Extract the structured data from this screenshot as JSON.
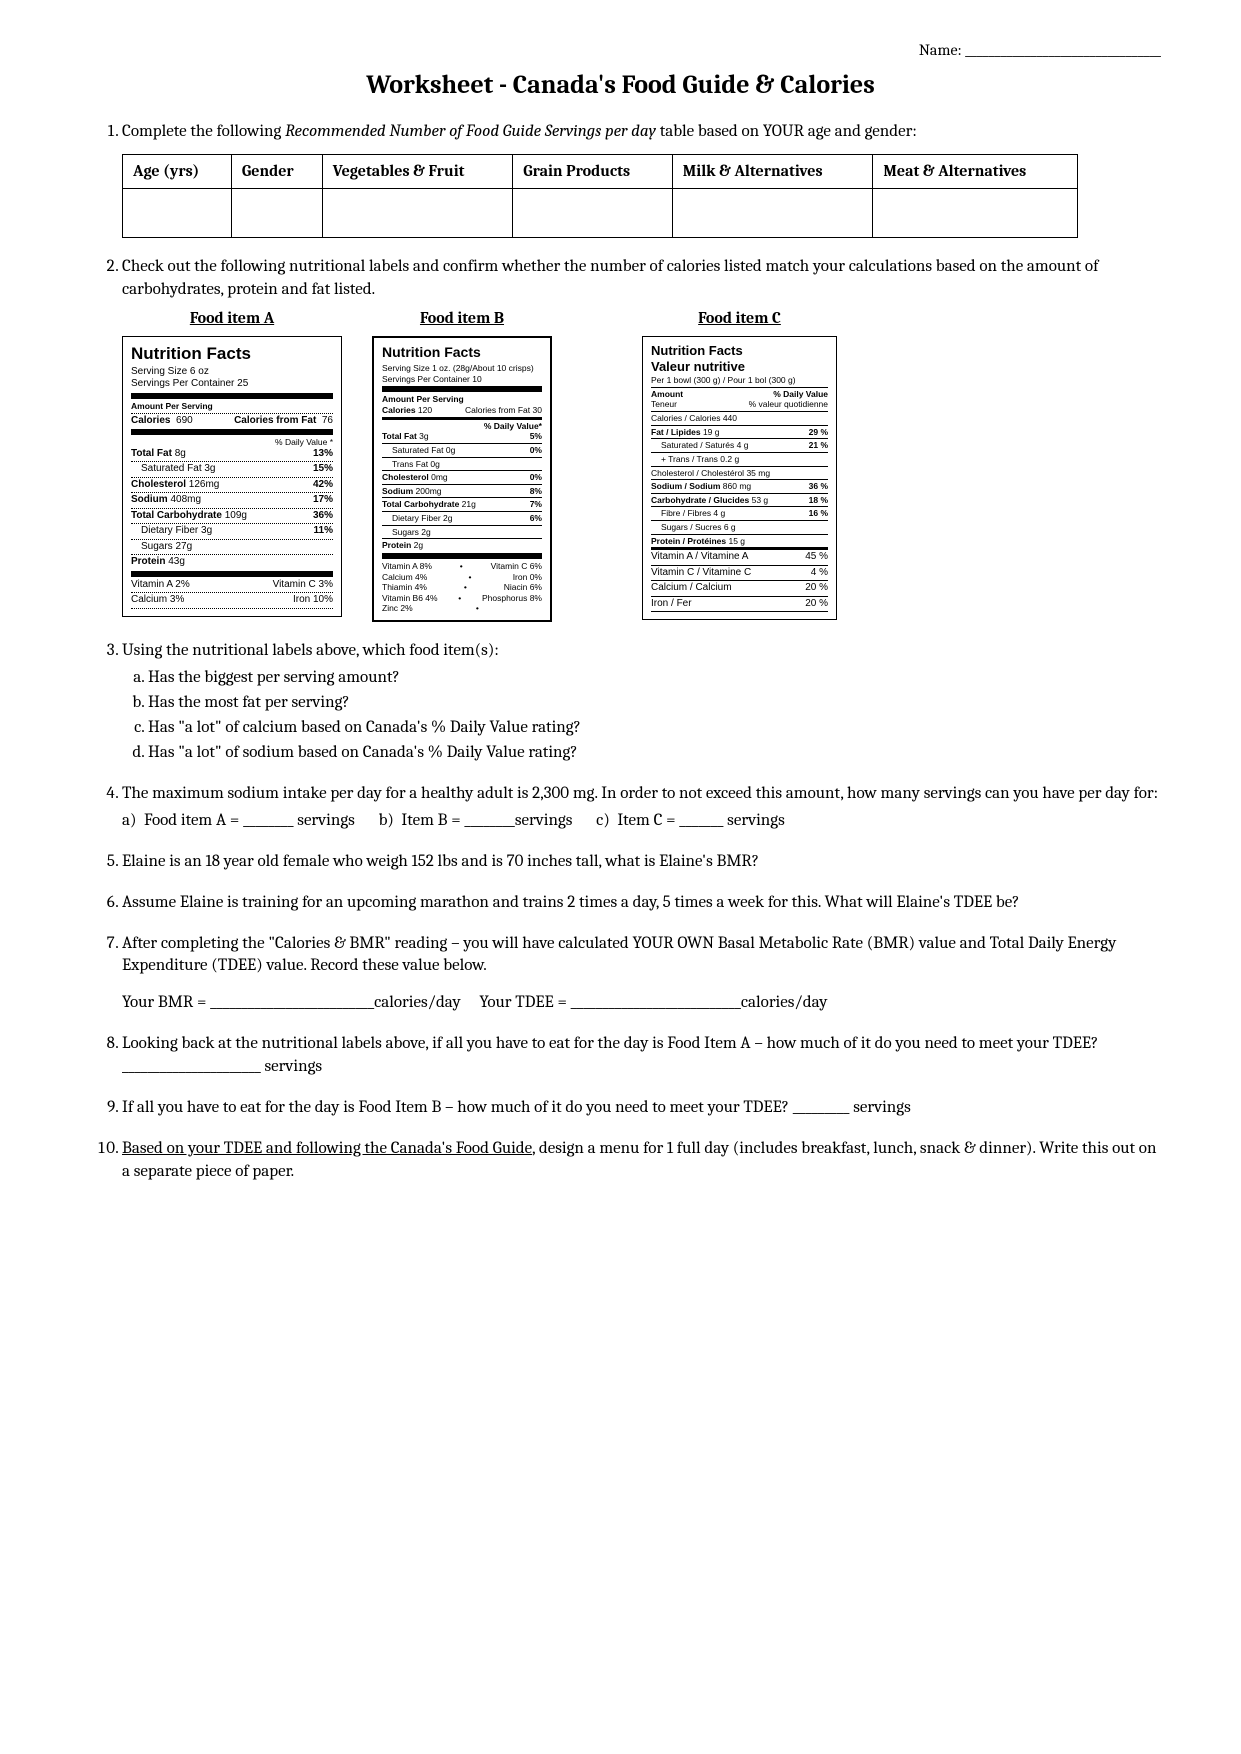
{
  "name_label": "Name: _________________________________",
  "title": "Worksheet - Canada's Food Guide & Calories",
  "q1": {
    "text_a": "Complete the following ",
    "text_em": "Recommended Number of Food Guide Servings per day",
    "text_b": " table based on YOUR age and gender:",
    "headers": [
      "Age (yrs)",
      "Gender",
      "Vegetables & Fruit",
      "Grain Products",
      "Milk & Alternatives",
      "Meat & Alternatives"
    ]
  },
  "q2": {
    "text": "Check out the following nutritional labels and confirm whether the number of calories listed match your calculations based on the amount of carbohydrates, protein and fat listed.",
    "labelA": "Food item A",
    "labelB": "Food item B",
    "labelC": "Food item C"
  },
  "foodA": {
    "title": "Nutrition Facts",
    "serving": "Serving Size 6 oz",
    "container": "Servings Per Container 25",
    "amount_per": "Amount Per Serving",
    "cal_l": "Calories",
    "cal_v": "690",
    "cff_l": "Calories from Fat",
    "cff_v": "76",
    "dv_header": "% Daily Value *",
    "rows": [
      {
        "l": "Total Fat",
        "v": "8g",
        "pct": "13%",
        "b": true
      },
      {
        "l": "Saturated Fat",
        "v": "3g",
        "pct": "15%",
        "indent": true
      },
      {
        "l": "Cholesterol",
        "v": "126mg",
        "pct": "42%",
        "b": true
      },
      {
        "l": "Sodium",
        "v": "408mg",
        "pct": "17%",
        "b": true
      },
      {
        "l": "Total Carbohydrate",
        "v": "109g",
        "pct": "36%",
        "b": true
      },
      {
        "l": "Dietary Fiber",
        "v": "3g",
        "pct": "11%",
        "indent": true
      },
      {
        "l": "Sugars",
        "v": "27g",
        "pct": "",
        "indent": true
      },
      {
        "l": "Protein",
        "v": "43g",
        "pct": "",
        "b": true
      }
    ],
    "vits": [
      {
        "l": "Vitamin A 2%",
        "r": "Vitamin C 3%"
      },
      {
        "l": "Calcium 3%",
        "r": "Iron 10%"
      }
    ]
  },
  "foodB": {
    "title": "Nutrition Facts",
    "serving": "Serving Size 1 oz. (28g/About 10 crisps)",
    "container": "Servings Per Container 10",
    "amount_per": "Amount Per Serving",
    "cal_l": "Calories",
    "cal_v": "120",
    "cff_l": "Calories from Fat",
    "cff_v": "30",
    "dv_header": "% Daily Value*",
    "rows": [
      {
        "l": "Total Fat",
        "v": "3g",
        "pct": "5%",
        "b": true
      },
      {
        "l": "Saturated Fat 0g",
        "v": "",
        "pct": "0%",
        "indent": true
      },
      {
        "l": "Trans Fat 0g",
        "v": "",
        "pct": "",
        "indent": true
      },
      {
        "l": "Cholesterol",
        "v": "0mg",
        "pct": "0%",
        "b": true
      },
      {
        "l": "Sodium",
        "v": "200mg",
        "pct": "8%",
        "b": true
      },
      {
        "l": "Total Carbohydrate",
        "v": "21g",
        "pct": "7%",
        "b": true
      },
      {
        "l": "Dietary Fiber 2g",
        "v": "",
        "pct": "6%",
        "indent": true
      },
      {
        "l": "Sugars 2g",
        "v": "",
        "pct": "",
        "indent": true
      },
      {
        "l": "Protein",
        "v": "2g",
        "pct": "",
        "b": true
      }
    ],
    "vits": [
      {
        "l": "Vitamin A 8%",
        "r": "Vitamin C 6%"
      },
      {
        "l": "Calcium 4%",
        "r": "Iron 0%"
      },
      {
        "l": "Thiamin 4%",
        "r": "Niacin 6%"
      },
      {
        "l": "Vitamin B6 4%",
        "r": "Phosphorus 8%"
      },
      {
        "l": "Zinc 2%",
        "r": ""
      }
    ]
  },
  "foodC": {
    "title1": "Nutrition Facts",
    "title2": "Valeur nutritive",
    "serving": "Per 1 bowl (300 g) / Pour 1 bol (300 g)",
    "amount_l": "Amount",
    "amount_r": "% Daily Value",
    "teneur_l": "Teneur",
    "teneur_r": "% valeur quotidienne",
    "rows": [
      {
        "l": "Calories / Calories",
        "v": "440",
        "pct": ""
      },
      {
        "l": "Fat / Lipides",
        "v": "19 g",
        "pct": "29 %",
        "b": true
      },
      {
        "l": "Saturated / Saturés 4 g",
        "v": "",
        "pct": "21 %",
        "indent": true
      },
      {
        "l": "+ Trans / Trans 0.2 g",
        "v": "",
        "pct": "",
        "indent": true
      },
      {
        "l": "Cholesterol / Cholestérol",
        "v": "35 mg",
        "pct": ""
      },
      {
        "l": "Sodium / Sodium",
        "v": "860 mg",
        "pct": "36 %",
        "b": true
      },
      {
        "l": "Carbohydrate / Glucides",
        "v": "53 g",
        "pct": "18 %",
        "b": true
      },
      {
        "l": "Fibre / Fibres 4 g",
        "v": "",
        "pct": "16 %",
        "indent": true
      },
      {
        "l": "Sugars / Sucres 6 g",
        "v": "",
        "pct": "",
        "indent": true
      },
      {
        "l": "Protein / Protéines",
        "v": "15 g",
        "pct": "",
        "b": true
      }
    ],
    "vits": [
      {
        "l": "Vitamin A / Vitamine A",
        "r": "45 %"
      },
      {
        "l": "Vitamin C / Vitamine C",
        "r": "4 %"
      },
      {
        "l": "Calcium / Calcium",
        "r": "20 %"
      },
      {
        "l": "Iron / Fer",
        "r": "20 %"
      }
    ]
  },
  "q3": {
    "text": "Using the nutritional labels above, which food item(s):",
    "a": "Has the biggest per serving amount?",
    "b": "Has the most fat per serving?",
    "c": "Has \"a lot\" of calcium based on Canada's % Daily Value rating?",
    "d": "Has \"a lot\" of sodium based on Canada's % Daily Value rating?"
  },
  "q4": {
    "text": "The maximum sodium intake per day for a healthy adult is 2,300 mg.  In order to not exceed this amount, how many servings can you have per day for:",
    "a": "Food item A = ________  servings",
    "b": "Item B = ________servings",
    "c": "Item C = _______  servings"
  },
  "q5": "Elaine is an 18 year old female who weigh 152 lbs and is 70 inches tall, what is Elaine's BMR?",
  "q6": "Assume Elaine is training for an upcoming marathon and trains 2 times a day, 5 times a week for this.  What will Elaine's TDEE be?",
  "q7": {
    "text": "After completing the \"Calories & BMR\" reading – you will have calculated YOUR OWN Basal Metabolic Rate (BMR) value and Total Daily Energy Expenditure (TDEE) value.  Record these value below.",
    "bmr": "Your BMR = __________________________calories/day",
    "tdee": "Your TDEE = ___________________________calories/day"
  },
  "q8": "Looking back at the nutritional labels above, if all you have to eat for the day is Food Item A – how much of it do you need to meet your TDEE?  ______________________ servings",
  "q9": "If all you have to eat for the day is Food Item B – how much of it do you need to meet your TDEE?  _________ servings",
  "q10": {
    "underline": "Based on your TDEE and following the Canada's Food Guide",
    "rest": ", design a menu for 1 full day (includes breakfast, lunch, snack & dinner).  Write this out on a separate piece of paper."
  }
}
